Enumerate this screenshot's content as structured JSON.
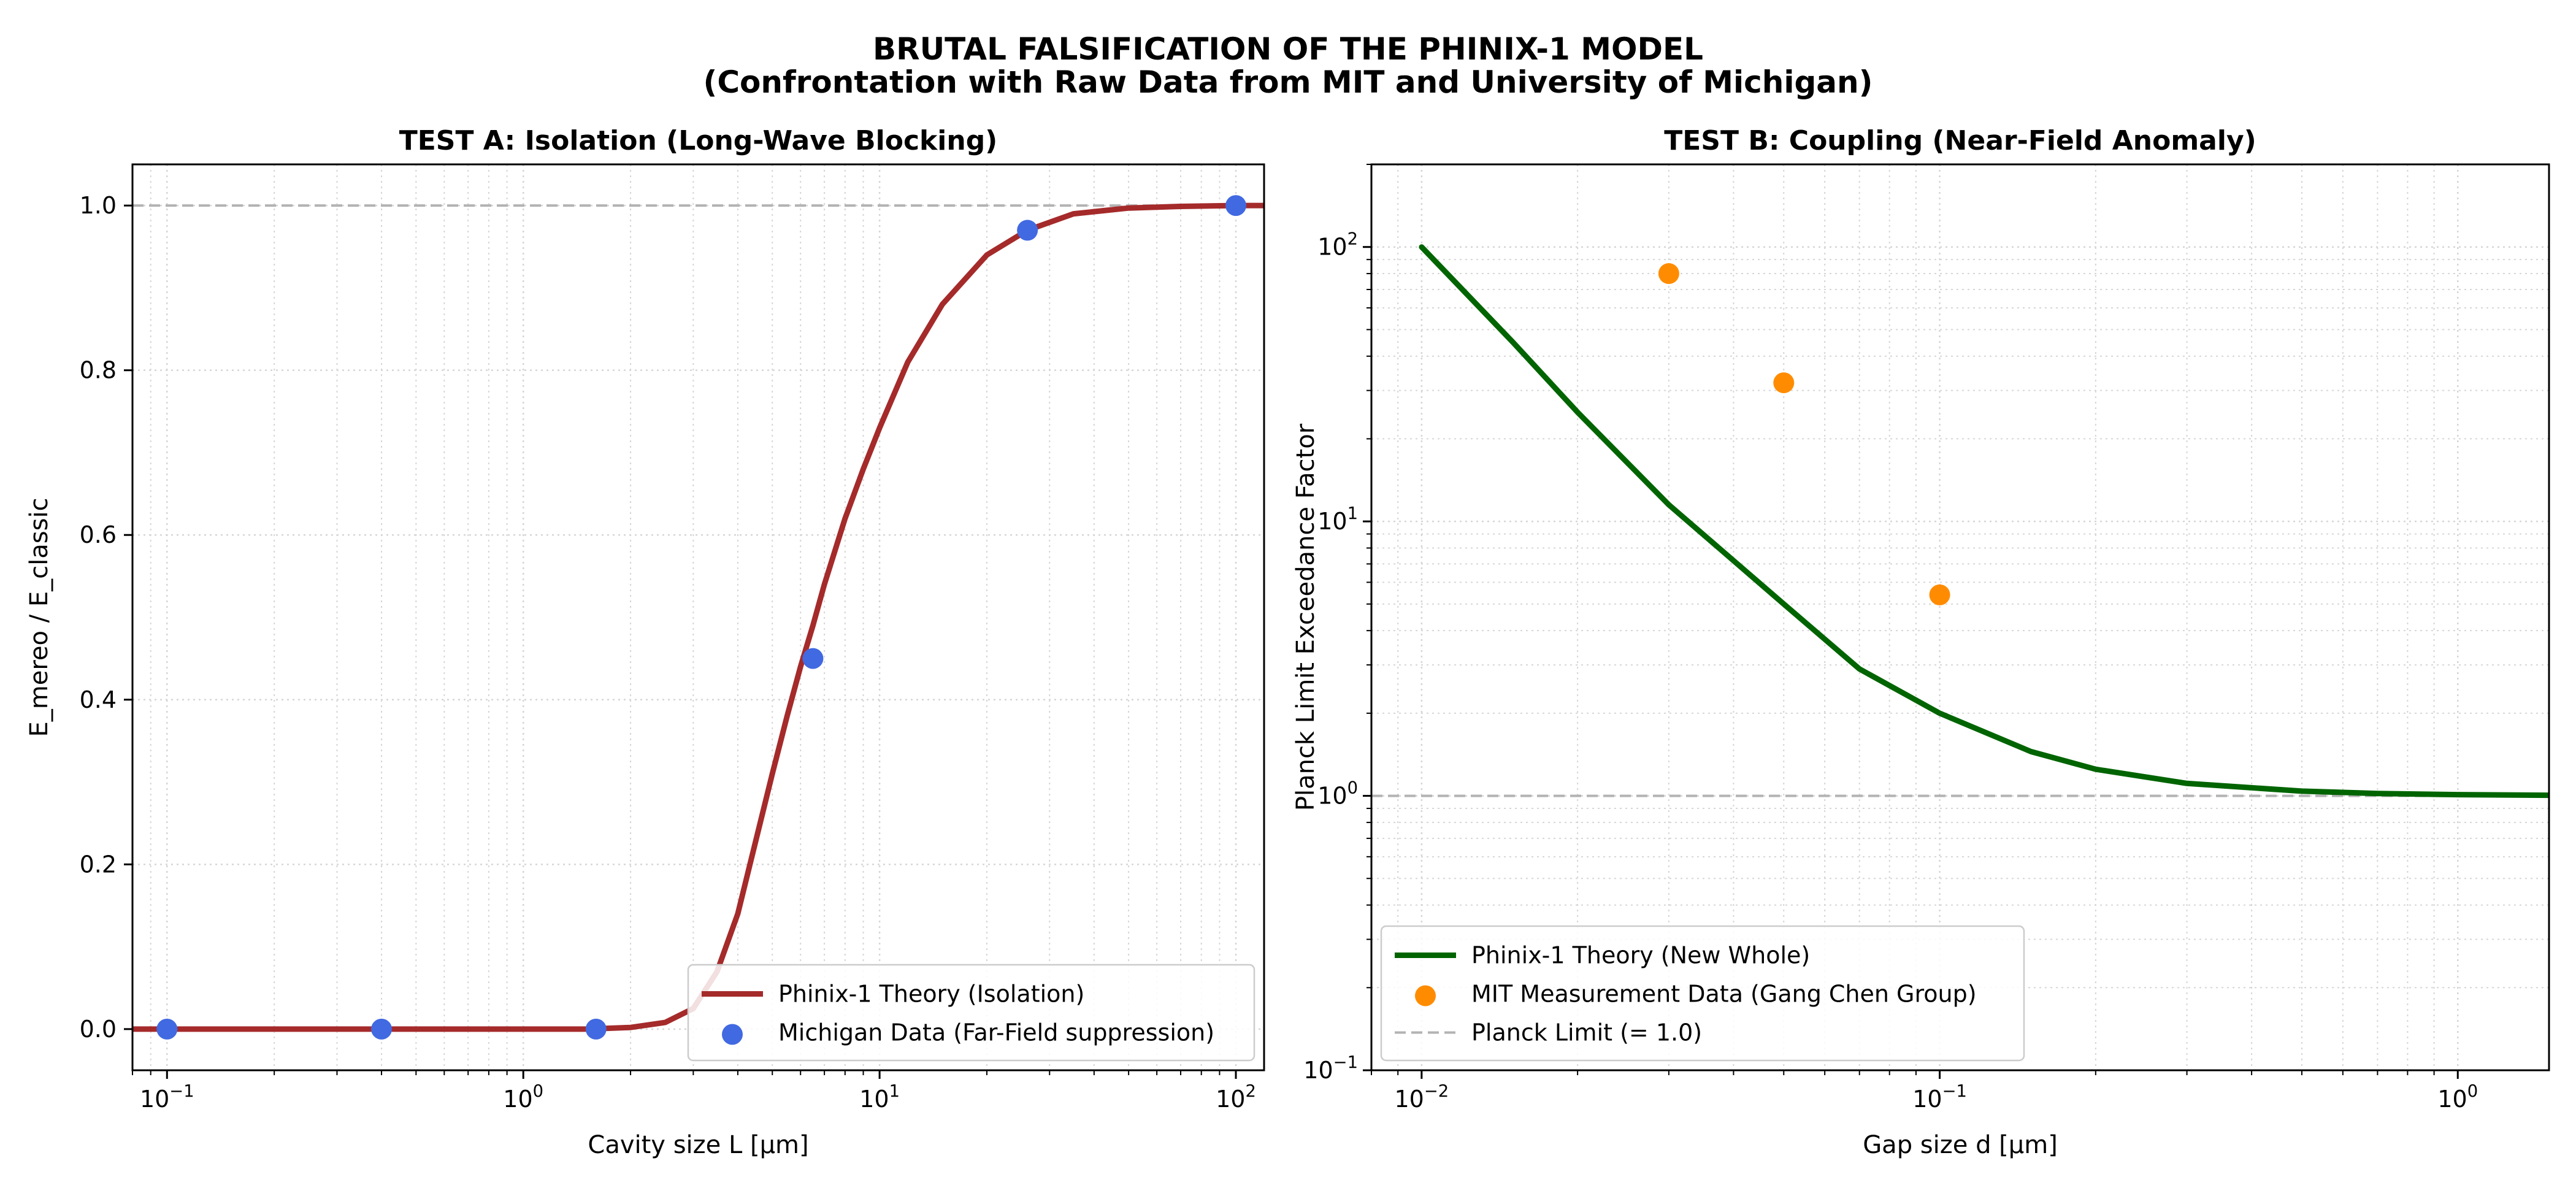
{
  "suptitle": {
    "line1": "BRUTAL FALSIFICATION OF THE PHINIX-1 MODEL",
    "line2": "(Confrontation with Raw Data from MIT and University of Michigan)"
  },
  "chart_data": [
    {
      "type": "line",
      "title": "TEST A: Isolation (Long-Wave Blocking)",
      "xlabel": "Cavity size L [µm]",
      "ylabel": "E_mereo / E_classic",
      "xscale": "log",
      "yscale": "linear",
      "xlim": [
        0.08,
        120
      ],
      "ylim": [
        -0.05,
        1.05
      ],
      "xticks": [
        {
          "value": 0.1,
          "base": "10",
          "exp": "−1"
        },
        {
          "value": 1,
          "base": "10",
          "exp": "0"
        },
        {
          "value": 10,
          "base": "10",
          "exp": "1"
        },
        {
          "value": 100,
          "base": "10",
          "exp": "2"
        }
      ],
      "yticks": [
        "0.0",
        "0.2",
        "0.4",
        "0.6",
        "0.8",
        "1.0"
      ],
      "reference_line": {
        "y": 1.0,
        "style": "dashed",
        "color": "#b3b3b3"
      },
      "grid": true,
      "legend_position": "lower-right",
      "series": [
        {
          "name": "Phinix-1 Theory (Isolation)",
          "kind": "line",
          "color": "#a52a2a",
          "x": [
            0.08,
            0.5,
            1.0,
            1.5,
            2.0,
            2.5,
            3.0,
            3.5,
            4.0,
            4.5,
            5.0,
            5.5,
            6.0,
            6.5,
            7.0,
            8.0,
            9.0,
            10.0,
            12.0,
            15.0,
            20.0,
            26.0,
            35.0,
            50.0,
            70.0,
            100.0,
            120.0
          ],
          "y": [
            0.0,
            0.0,
            0.0,
            0.0,
            0.002,
            0.008,
            0.025,
            0.07,
            0.14,
            0.23,
            0.31,
            0.38,
            0.44,
            0.49,
            0.54,
            0.62,
            0.68,
            0.73,
            0.81,
            0.88,
            0.94,
            0.97,
            0.99,
            0.997,
            0.999,
            1.0,
            1.0
          ]
        },
        {
          "name": "Michigan Data (Far-Field suppression)",
          "kind": "scatter",
          "color": "#4169e1",
          "x": [
            0.1,
            0.4,
            1.6,
            6.5,
            26.0,
            100.0
          ],
          "y": [
            0.0,
            0.0,
            0.0,
            0.45,
            0.97,
            1.0
          ]
        }
      ]
    },
    {
      "type": "line",
      "title": "TEST B: Coupling (Near-Field Anomaly)",
      "xlabel": "Gap size d [µm]",
      "ylabel": "Planck Limit Exceedance Factor",
      "xscale": "log",
      "yscale": "log",
      "xlim": [
        0.008,
        1.5
      ],
      "ylim": [
        0.1,
        200
      ],
      "xticks": [
        {
          "value": 0.01,
          "base": "10",
          "exp": "−2"
        },
        {
          "value": 0.1,
          "base": "10",
          "exp": "−1"
        },
        {
          "value": 1,
          "base": "10",
          "exp": "0"
        }
      ],
      "yticks": [
        {
          "value": 0.1,
          "base": "10",
          "exp": "−1"
        },
        {
          "value": 1,
          "base": "10",
          "exp": "0"
        },
        {
          "value": 10,
          "base": "10",
          "exp": "1"
        },
        {
          "value": 100,
          "base": "10",
          "exp": "2"
        }
      ],
      "reference_line": {
        "y": 1.0,
        "style": "dashed",
        "color": "#b3b3b3"
      },
      "grid": true,
      "legend_position": "lower-left",
      "series": [
        {
          "name": "Phinix-1 Theory (New Whole)",
          "kind": "line",
          "color": "#006400",
          "x": [
            0.01,
            0.015,
            0.02,
            0.03,
            0.05,
            0.07,
            0.1,
            0.15,
            0.2,
            0.3,
            0.5,
            0.7,
            1.0,
            1.5
          ],
          "y": [
            100,
            45,
            25,
            11.5,
            5.0,
            2.9,
            2.0,
            1.45,
            1.25,
            1.11,
            1.04,
            1.02,
            1.01,
            1.005
          ]
        },
        {
          "name": "MIT Measurement Data (Gang Chen Group)",
          "kind": "scatter",
          "color": "#ff8c00",
          "x": [
            0.03,
            0.05,
            0.1
          ],
          "y": [
            80,
            32,
            5.4
          ]
        },
        {
          "name": "Planck Limit (= 1.0)",
          "kind": "reference",
          "color": "#b3b3b3"
        }
      ]
    }
  ]
}
